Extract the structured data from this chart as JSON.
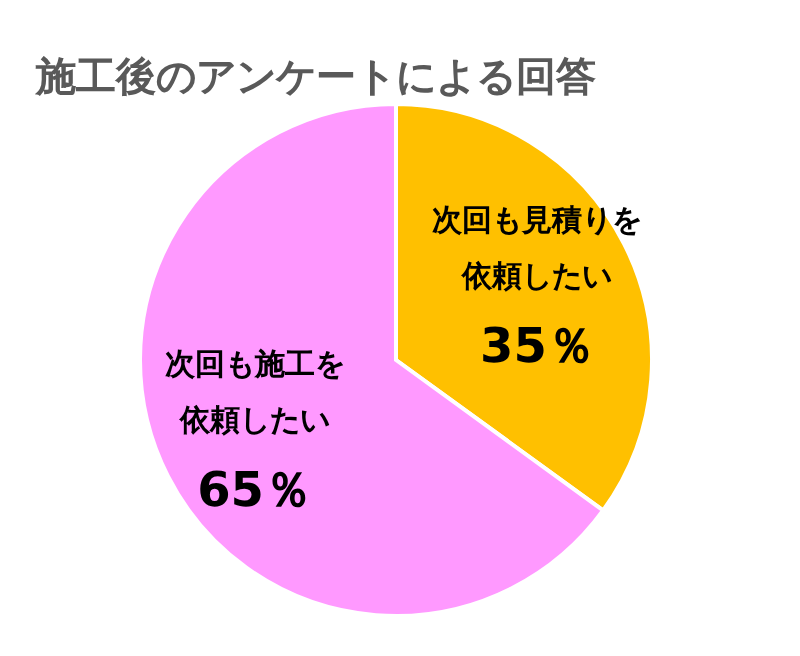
{
  "chart_data": {
    "type": "pie",
    "title": "施工後のアンケートによる回答",
    "categories": [
      "次回も見積りを依頼したい",
      "次回も施工を依頼したい"
    ],
    "values": [
      35,
      65
    ],
    "colors": [
      "#ffc000",
      "#ff99ff"
    ],
    "value_labels": [
      "35％",
      "65％"
    ]
  }
}
